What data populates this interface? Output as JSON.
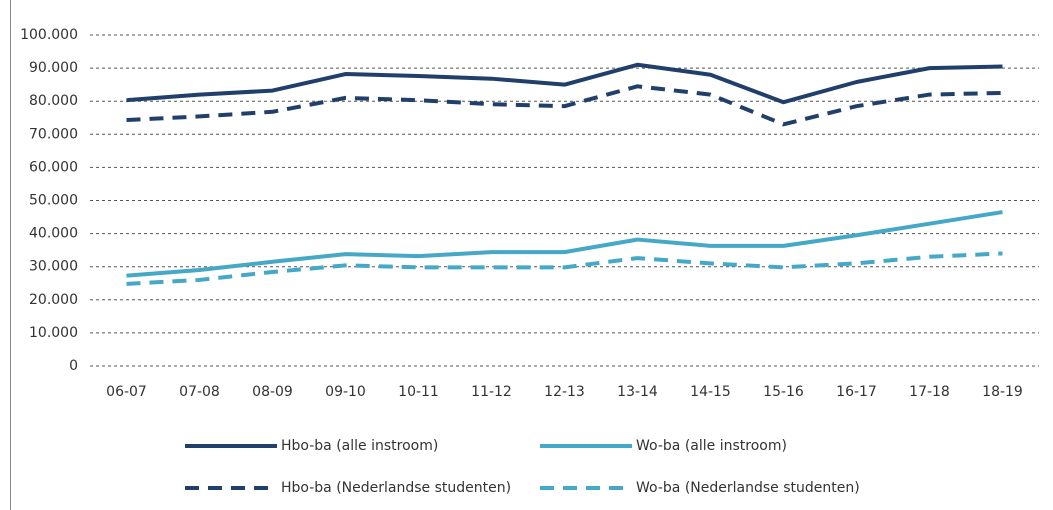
{
  "chart_data": {
    "type": "line",
    "categories": [
      "06-07",
      "07-08",
      "08-09",
      "09-10",
      "10-11",
      "11-12",
      "12-13",
      "13-14",
      "14-15",
      "15-16",
      "16-17",
      "17-18",
      "18-19"
    ],
    "series": [
      {
        "name": "Hbo-ba (alle instroom)",
        "color": "#203f6b",
        "dash": false,
        "values": [
          80300,
          82000,
          83200,
          88200,
          87600,
          86800,
          85000,
          91000,
          88000,
          79700,
          85800,
          90000,
          90500
        ]
      },
      {
        "name": "Wo-ba (alle instroom)",
        "color": "#45a8c6",
        "dash": false,
        "values": [
          27300,
          29000,
          31500,
          33800,
          33200,
          34400,
          34400,
          38200,
          36300,
          36300,
          39500,
          43000,
          46500
        ]
      },
      {
        "name": "Hbo-ba (Nederlandse studenten)",
        "color": "#203f6b",
        "dash": true,
        "values": [
          74300,
          75400,
          76800,
          81000,
          80300,
          79100,
          78500,
          84500,
          82000,
          73000,
          78500,
          82000,
          82500
        ]
      },
      {
        "name": "Wo-ba (Nederlandse studenten)",
        "color": "#45a8c6",
        "dash": true,
        "values": [
          24800,
          26000,
          28400,
          30400,
          29800,
          29800,
          29800,
          32600,
          31000,
          29800,
          31000,
          33000,
          34000
        ]
      }
    ],
    "ylim": [
      0,
      100000
    ],
    "yticks": [
      0,
      {
        "value": 10000,
        "label": "10.000"
      },
      {
        "value": 20000,
        "label": "20.000"
      },
      {
        "value": 30000,
        "label": "30.000"
      },
      {
        "value": 40000,
        "label": "40.000"
      },
      {
        "value": 50000,
        "label": "50.000"
      },
      {
        "value": 60000,
        "label": "60.000"
      },
      {
        "value": 70000,
        "label": "70.000"
      },
      {
        "value": 80000,
        "label": "80.000"
      },
      {
        "value": 90000,
        "label": "90.000"
      },
      {
        "value": 100000,
        "label": "100.000"
      }
    ],
    "grid": true
  }
}
